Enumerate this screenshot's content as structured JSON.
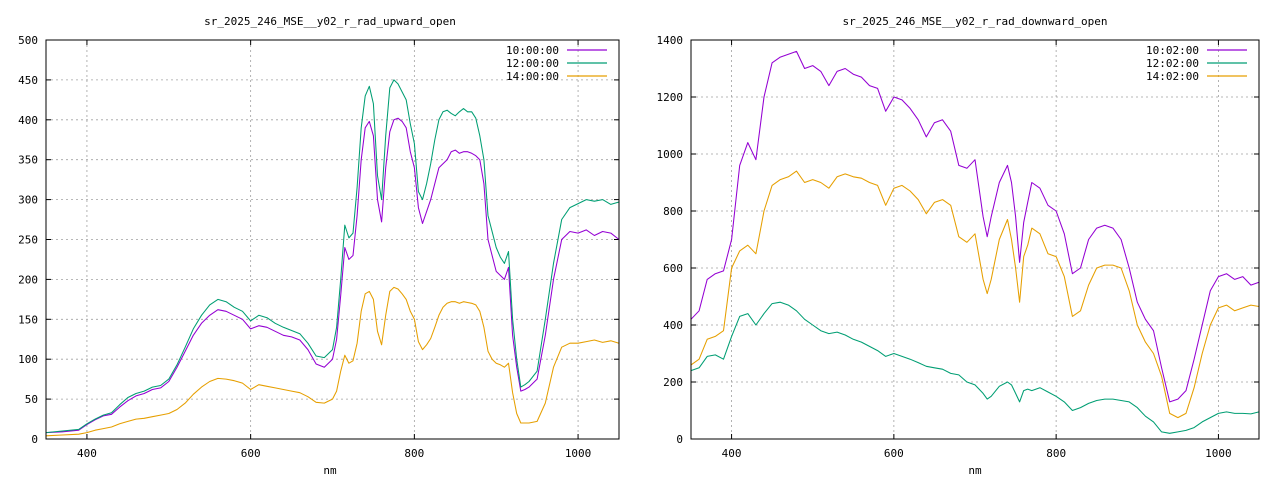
{
  "chart_data": [
    {
      "type": "line",
      "title": "sr_2025_246_MSE__y02_r_rad_upward_open",
      "xlabel": "nm",
      "ylabel": "",
      "xlim": [
        350,
        1050
      ],
      "ylim": [
        0,
        500
      ],
      "xticks": [
        400,
        600,
        800,
        1000
      ],
      "yticks": [
        0,
        50,
        100,
        150,
        200,
        250,
        300,
        350,
        400,
        450,
        500
      ],
      "grid": true,
      "legend": "top-right",
      "series": [
        {
          "name": "10:00:00",
          "color": "#9400d3",
          "x": [
            350,
            370,
            390,
            400,
            410,
            420,
            430,
            440,
            450,
            460,
            470,
            480,
            490,
            500,
            510,
            520,
            530,
            540,
            550,
            560,
            570,
            580,
            590,
            600,
            610,
            620,
            630,
            640,
            650,
            660,
            670,
            680,
            690,
            700,
            705,
            710,
            715,
            720,
            725,
            730,
            735,
            740,
            745,
            750,
            755,
            760,
            765,
            770,
            775,
            780,
            785,
            790,
            795,
            800,
            805,
            810,
            815,
            820,
            825,
            830,
            835,
            840,
            845,
            850,
            855,
            860,
            865,
            870,
            875,
            880,
            885,
            890,
            895,
            900,
            905,
            910,
            915,
            920,
            925,
            930,
            935,
            940,
            950,
            960,
            970,
            980,
            990,
            1000,
            1010,
            1020,
            1030,
            1040,
            1050
          ],
          "values": [
            8,
            9,
            11,
            18,
            24,
            29,
            31,
            40,
            48,
            54,
            57,
            62,
            64,
            72,
            90,
            110,
            130,
            145,
            155,
            162,
            160,
            155,
            150,
            138,
            142,
            140,
            135,
            130,
            128,
            124,
            112,
            94,
            90,
            100,
            125,
            180,
            240,
            225,
            230,
            280,
            350,
            390,
            398,
            380,
            300,
            272,
            340,
            385,
            400,
            402,
            398,
            390,
            360,
            340,
            290,
            270,
            285,
            300,
            320,
            340,
            345,
            350,
            360,
            362,
            358,
            360,
            360,
            358,
            355,
            350,
            320,
            250,
            230,
            210,
            205,
            200,
            215,
            130,
            90,
            60,
            62,
            65,
            75,
            130,
            200,
            250,
            260,
            258,
            262,
            255,
            260,
            258,
            250
          ]
        },
        {
          "name": "12:00:00",
          "color": "#009e73",
          "x": [
            350,
            370,
            390,
            400,
            410,
            420,
            430,
            440,
            450,
            460,
            470,
            480,
            490,
            500,
            510,
            520,
            530,
            540,
            550,
            560,
            570,
            580,
            590,
            600,
            610,
            620,
            630,
            640,
            650,
            660,
            670,
            680,
            690,
            700,
            705,
            710,
            715,
            720,
            725,
            730,
            735,
            740,
            745,
            750,
            755,
            760,
            765,
            770,
            775,
            780,
            785,
            790,
            795,
            800,
            805,
            810,
            815,
            820,
            825,
            830,
            835,
            840,
            845,
            850,
            855,
            860,
            865,
            870,
            875,
            880,
            885,
            890,
            895,
            900,
            905,
            910,
            915,
            920,
            925,
            930,
            935,
            940,
            950,
            960,
            970,
            980,
            990,
            1000,
            1010,
            1020,
            1030,
            1040,
            1050
          ],
          "values": [
            8,
            10,
            12,
            19,
            25,
            30,
            33,
            43,
            52,
            57,
            60,
            65,
            67,
            75,
            93,
            115,
            138,
            155,
            168,
            175,
            172,
            165,
            160,
            148,
            155,
            152,
            145,
            140,
            136,
            132,
            120,
            104,
            102,
            112,
            140,
            200,
            268,
            252,
            258,
            315,
            390,
            430,
            442,
            420,
            330,
            300,
            380,
            440,
            450,
            445,
            435,
            425,
            395,
            370,
            310,
            300,
            320,
            345,
            375,
            400,
            410,
            412,
            408,
            405,
            410,
            414,
            410,
            410,
            402,
            380,
            350,
            280,
            260,
            240,
            228,
            220,
            235,
            150,
            100,
            65,
            68,
            72,
            85,
            150,
            220,
            275,
            290,
            295,
            300,
            298,
            300,
            294,
            297
          ]
        },
        {
          "name": "14:00:00",
          "color": "#e69f00",
          "x": [
            350,
            370,
            390,
            400,
            410,
            420,
            430,
            440,
            450,
            460,
            470,
            480,
            490,
            500,
            510,
            520,
            530,
            540,
            550,
            560,
            570,
            580,
            590,
            600,
            610,
            620,
            630,
            640,
            650,
            660,
            670,
            680,
            690,
            700,
            705,
            710,
            715,
            720,
            725,
            730,
            735,
            740,
            745,
            750,
            755,
            760,
            765,
            770,
            775,
            780,
            785,
            790,
            795,
            800,
            805,
            810,
            815,
            820,
            825,
            830,
            835,
            840,
            845,
            850,
            855,
            860,
            865,
            870,
            875,
            880,
            885,
            890,
            895,
            900,
            905,
            910,
            915,
            920,
            925,
            930,
            935,
            940,
            950,
            960,
            970,
            980,
            990,
            1000,
            1010,
            1020,
            1030,
            1040,
            1050
          ],
          "values": [
            4,
            5,
            6,
            8,
            11,
            13,
            15,
            19,
            22,
            25,
            26,
            28,
            30,
            32,
            37,
            45,
            56,
            65,
            72,
            76,
            75,
            73,
            70,
            62,
            68,
            66,
            64,
            62,
            60,
            58,
            53,
            46,
            45,
            50,
            60,
            85,
            105,
            95,
            98,
            120,
            160,
            182,
            185,
            175,
            135,
            118,
            155,
            185,
            190,
            188,
            182,
            175,
            160,
            150,
            122,
            112,
            118,
            126,
            140,
            155,
            165,
            170,
            172,
            172,
            170,
            172,
            171,
            170,
            168,
            160,
            140,
            110,
            100,
            95,
            93,
            90,
            95,
            58,
            32,
            20,
            20,
            20,
            22,
            45,
            90,
            115,
            120,
            120,
            122,
            124,
            121,
            123,
            120
          ]
        }
      ]
    },
    {
      "type": "line",
      "title": "sr_2025_246_MSE__y02_r_rad_downward_open",
      "xlabel": "nm",
      "ylabel": "",
      "xlim": [
        350,
        1050
      ],
      "ylim": [
        0,
        1400
      ],
      "xticks": [
        400,
        600,
        800,
        1000
      ],
      "yticks": [
        0,
        200,
        400,
        600,
        800,
        1000,
        1200,
        1400
      ],
      "grid": true,
      "legend": "top-right",
      "series": [
        {
          "name": "10:02:00",
          "color": "#9400d3",
          "x": [
            350,
            360,
            370,
            380,
            390,
            400,
            410,
            420,
            430,
            440,
            450,
            460,
            470,
            480,
            490,
            500,
            510,
            520,
            530,
            540,
            550,
            560,
            570,
            580,
            590,
            600,
            610,
            620,
            630,
            640,
            650,
            660,
            670,
            680,
            690,
            700,
            710,
            715,
            720,
            730,
            740,
            745,
            750,
            755,
            760,
            765,
            770,
            780,
            790,
            800,
            810,
            820,
            830,
            840,
            850,
            860,
            870,
            880,
            890,
            900,
            910,
            920,
            930,
            940,
            950,
            960,
            970,
            980,
            990,
            1000,
            1010,
            1020,
            1030,
            1040,
            1050
          ],
          "values": [
            420,
            450,
            560,
            580,
            590,
            700,
            960,
            1040,
            980,
            1200,
            1320,
            1340,
            1350,
            1360,
            1300,
            1310,
            1290,
            1240,
            1290,
            1300,
            1280,
            1270,
            1240,
            1230,
            1150,
            1200,
            1190,
            1160,
            1120,
            1060,
            1110,
            1120,
            1080,
            960,
            950,
            980,
            780,
            710,
            780,
            900,
            960,
            900,
            780,
            620,
            760,
            830,
            900,
            880,
            820,
            800,
            720,
            580,
            600,
            700,
            740,
            750,
            740,
            700,
            600,
            480,
            420,
            380,
            250,
            130,
            140,
            170,
            280,
            400,
            520,
            570,
            580,
            560,
            570,
            540,
            550
          ]
        },
        {
          "name": "12:02:00",
          "color": "#009e73",
          "x": [
            350,
            360,
            370,
            380,
            390,
            400,
            410,
            420,
            430,
            440,
            450,
            460,
            470,
            480,
            490,
            500,
            510,
            520,
            530,
            540,
            550,
            560,
            570,
            580,
            590,
            600,
            610,
            620,
            630,
            640,
            650,
            660,
            670,
            680,
            690,
            700,
            710,
            715,
            720,
            730,
            740,
            745,
            750,
            755,
            760,
            765,
            770,
            780,
            790,
            800,
            810,
            820,
            830,
            840,
            850,
            860,
            870,
            880,
            890,
            900,
            910,
            920,
            930,
            940,
            950,
            960,
            970,
            980,
            990,
            1000,
            1010,
            1020,
            1030,
            1040,
            1050
          ],
          "values": [
            240,
            250,
            290,
            295,
            280,
            360,
            430,
            440,
            400,
            440,
            475,
            480,
            470,
            450,
            420,
            400,
            380,
            370,
            375,
            365,
            350,
            340,
            325,
            310,
            290,
            300,
            290,
            280,
            268,
            255,
            250,
            245,
            230,
            225,
            200,
            190,
            160,
            140,
            150,
            185,
            200,
            190,
            160,
            130,
            170,
            175,
            170,
            180,
            165,
            150,
            130,
            100,
            110,
            125,
            135,
            140,
            140,
            135,
            130,
            110,
            80,
            60,
            25,
            20,
            25,
            30,
            40,
            60,
            75,
            90,
            95,
            90,
            90,
            88,
            95
          ]
        },
        {
          "name": "14:02:00",
          "color": "#e69f00",
          "x": [
            350,
            360,
            370,
            380,
            390,
            400,
            410,
            420,
            430,
            440,
            450,
            460,
            470,
            480,
            490,
            500,
            510,
            520,
            530,
            540,
            550,
            560,
            570,
            580,
            590,
            600,
            610,
            620,
            630,
            640,
            650,
            660,
            670,
            680,
            690,
            700,
            710,
            715,
            720,
            730,
            740,
            745,
            750,
            755,
            760,
            765,
            770,
            780,
            790,
            800,
            810,
            820,
            830,
            840,
            850,
            860,
            870,
            880,
            890,
            900,
            910,
            920,
            930,
            940,
            950,
            960,
            970,
            980,
            990,
            1000,
            1010,
            1020,
            1030,
            1040,
            1050
          ],
          "values": [
            260,
            280,
            350,
            360,
            380,
            600,
            660,
            680,
            650,
            800,
            890,
            910,
            920,
            940,
            900,
            910,
            900,
            880,
            920,
            930,
            920,
            915,
            900,
            890,
            820,
            880,
            890,
            870,
            840,
            790,
            830,
            840,
            820,
            710,
            690,
            720,
            560,
            510,
            560,
            700,
            770,
            700,
            600,
            480,
            640,
            680,
            740,
            720,
            650,
            640,
            570,
            430,
            450,
            540,
            600,
            610,
            610,
            600,
            520,
            400,
            340,
            300,
            220,
            90,
            75,
            90,
            180,
            300,
            400,
            460,
            470,
            450,
            460,
            470,
            465
          ]
        }
      ]
    }
  ]
}
